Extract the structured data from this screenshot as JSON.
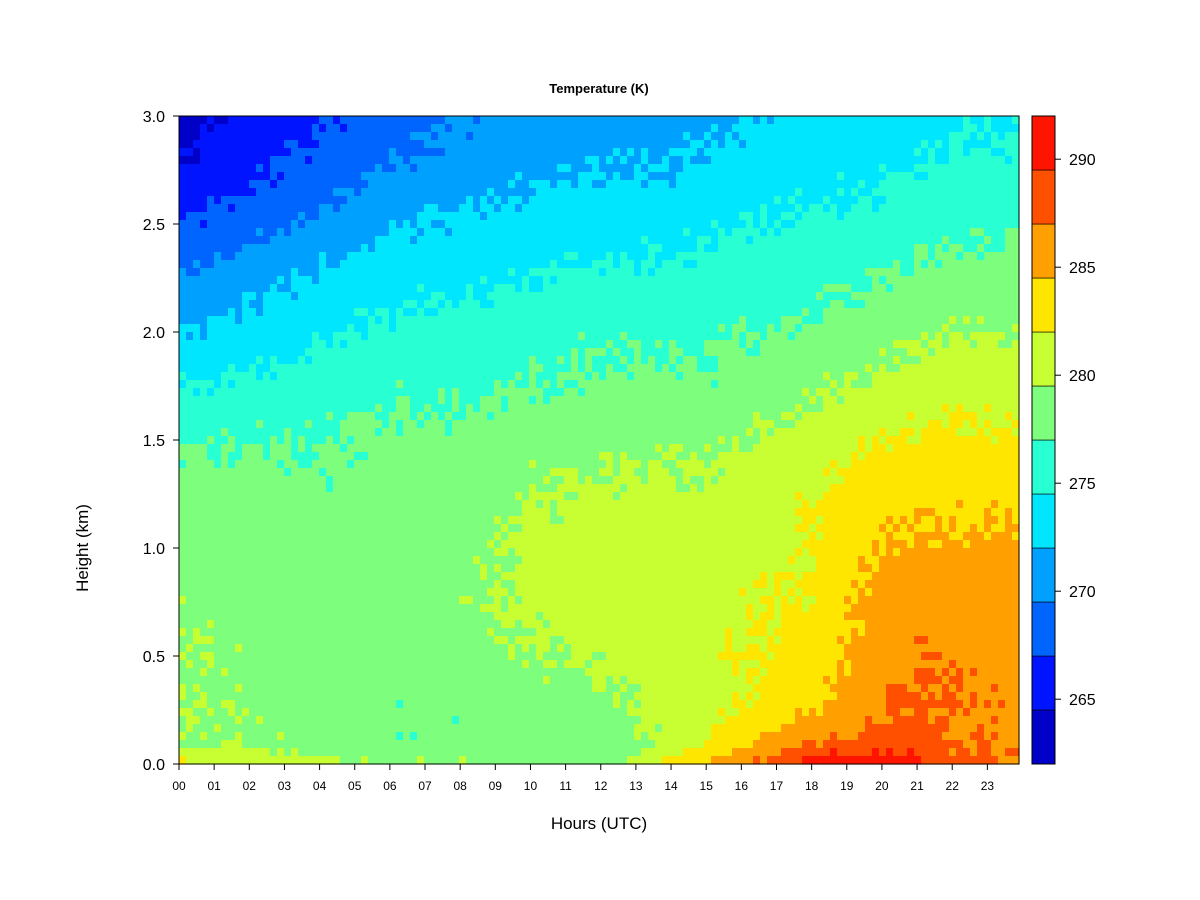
{
  "chart_data": {
    "type": "heatmap",
    "title": "Temperature (K)",
    "xlabel": "Hours (UTC)",
    "ylabel": "Height (km)",
    "x_ticks": [
      "00",
      "01",
      "02",
      "03",
      "04",
      "05",
      "06",
      "07",
      "08",
      "09",
      "10",
      "11",
      "12",
      "13",
      "14",
      "15",
      "16",
      "17",
      "18",
      "19",
      "20",
      "21",
      "22",
      "23"
    ],
    "xlim": [
      0,
      23.9
    ],
    "y_ticks": [
      "0.0",
      "0.5",
      "1.0",
      "1.5",
      "2.0",
      "2.5",
      "3.0"
    ],
    "ylim": [
      0,
      3.0
    ],
    "colorbar": {
      "ticks": [
        265,
        270,
        275,
        280,
        285,
        290
      ],
      "range": [
        262,
        292
      ],
      "levels": [
        262,
        264.5,
        267,
        269.5,
        272,
        274.5,
        277,
        279.5,
        282,
        284.5,
        287,
        289.5,
        292
      ],
      "colors": [
        "#000080",
        "#0000c8",
        "#0014ff",
        "#0064ff",
        "#00a0ff",
        "#00e6ff",
        "#28ffd2",
        "#7dff7d",
        "#c8ff32",
        "#ffe600",
        "#ffa000",
        "#ff5000",
        "#ff1400",
        "#c80000",
        "#800000"
      ]
    },
    "heights_km": [
      0.0,
      0.05,
      0.1,
      0.2,
      0.3,
      0.5,
      0.75,
      1.0,
      1.25,
      1.5,
      1.75,
      2.0,
      2.25,
      2.5,
      2.75,
      3.0
    ],
    "hours": [
      0,
      2,
      4,
      6,
      8,
      10,
      12,
      13,
      14,
      15,
      16,
      17,
      18,
      19,
      20,
      21,
      22,
      23.9
    ],
    "temperature_k": [
      [
        282.5,
        281.0,
        280.0,
        279.5,
        279.5,
        279.0,
        279.0,
        280.0,
        283.0,
        285.0,
        286.5,
        288.0,
        290.5,
        291.0,
        291.5,
        290.0,
        288.0,
        287.5
      ],
      [
        280.5,
        280.0,
        279.0,
        278.5,
        278.0,
        278.0,
        278.0,
        279.0,
        281.5,
        283.5,
        285.5,
        287.0,
        289.0,
        289.5,
        289.5,
        289.0,
        287.5,
        287.0
      ],
      [
        279.5,
        279.5,
        278.5,
        277.5,
        277.5,
        278.0,
        278.0,
        279.0,
        280.0,
        282.0,
        284.0,
        285.5,
        287.0,
        287.5,
        288.0,
        288.0,
        287.0,
        286.5
      ],
      [
        279.5,
        279.0,
        278.5,
        277.5,
        277.5,
        278.0,
        278.5,
        279.5,
        280.5,
        281.5,
        282.5,
        283.5,
        285.0,
        286.0,
        287.0,
        287.5,
        287.0,
        286.5
      ],
      [
        279.5,
        279.0,
        278.5,
        277.5,
        278.0,
        278.5,
        279.0,
        279.5,
        280.5,
        281.0,
        282.0,
        282.5,
        284.0,
        285.0,
        286.5,
        287.5,
        287.0,
        286.5
      ],
      [
        279.5,
        279.0,
        278.5,
        278.0,
        278.5,
        279.5,
        280.0,
        280.5,
        281.0,
        281.5,
        282.0,
        282.5,
        283.0,
        284.5,
        286.0,
        287.0,
        286.5,
        286.0
      ],
      [
        279.0,
        278.5,
        278.5,
        278.5,
        279.0,
        280.0,
        280.5,
        280.5,
        280.5,
        281.0,
        281.5,
        282.0,
        282.5,
        284.0,
        285.5,
        286.0,
        286.0,
        285.5
      ],
      [
        278.5,
        278.5,
        278.0,
        278.5,
        279.0,
        280.0,
        280.5,
        280.5,
        280.5,
        280.5,
        281.0,
        281.5,
        282.0,
        283.5,
        284.5,
        285.0,
        285.0,
        285.0
      ],
      [
        278.0,
        278.0,
        277.5,
        278.0,
        278.5,
        279.5,
        280.0,
        280.0,
        280.0,
        280.0,
        280.5,
        281.0,
        282.0,
        283.0,
        283.5,
        284.0,
        284.0,
        284.0
      ],
      [
        276.5,
        277.0,
        277.0,
        277.5,
        277.5,
        278.5,
        279.0,
        279.0,
        279.0,
        279.0,
        279.5,
        280.0,
        280.5,
        281.5,
        282.0,
        282.5,
        282.5,
        282.5
      ],
      [
        274.5,
        275.0,
        276.0,
        276.5,
        276.5,
        277.0,
        277.5,
        277.5,
        277.5,
        277.5,
        278.0,
        278.5,
        279.0,
        279.5,
        280.0,
        280.5,
        281.0,
        281.0
      ],
      [
        272.0,
        273.0,
        274.0,
        275.0,
        275.5,
        276.0,
        276.5,
        276.5,
        276.5,
        276.5,
        277.0,
        277.0,
        277.5,
        278.0,
        278.5,
        279.0,
        279.5,
        279.5
      ],
      [
        269.5,
        271.0,
        272.5,
        273.5,
        274.0,
        274.5,
        275.0,
        275.0,
        275.0,
        275.5,
        276.0,
        276.0,
        276.0,
        276.5,
        277.0,
        277.5,
        278.0,
        278.0
      ],
      [
        267.0,
        268.5,
        270.0,
        271.5,
        272.5,
        273.0,
        273.5,
        273.5,
        273.5,
        274.0,
        274.5,
        274.5,
        275.0,
        275.0,
        275.5,
        276.0,
        276.5,
        276.5
      ],
      [
        264.5,
        266.5,
        268.0,
        269.5,
        270.5,
        271.5,
        272.0,
        272.0,
        272.0,
        272.5,
        273.0,
        273.5,
        273.5,
        274.0,
        274.0,
        274.5,
        275.0,
        275.0
      ],
      [
        263.5,
        265.0,
        266.5,
        268.5,
        269.5,
        270.5,
        271.0,
        271.0,
        271.0,
        271.5,
        272.0,
        272.5,
        272.5,
        273.0,
        273.0,
        273.5,
        274.0,
        274.0
      ]
    ]
  }
}
